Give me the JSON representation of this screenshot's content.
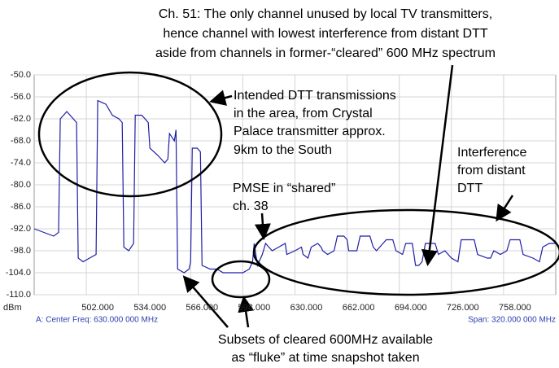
{
  "chart_data": {
    "type": "line",
    "title_lines": [
      "Ch. 51: The only channel unused by local TV transmitters,",
      "hence channel with lowest interference from distant DTT",
      "aside from channels in former-“cleared” 600 MHz spectrum"
    ],
    "annotations": {
      "intended": [
        "Intended DTT transmissions",
        "in the area, from Crystal",
        "Palace transmitter approx.",
        "9km to the South"
      ],
      "interference": [
        "Interference",
        "from distant",
        "DTT"
      ],
      "pmse": [
        "PMSE in “shared”",
        "ch. 38"
      ],
      "subsets": [
        "Subsets of cleared 600MHz available",
        "as “fluke” at time snapshot taken"
      ]
    },
    "y_unit": "dBm",
    "center_freq": "A: Center Freq: 630.000 000 MHz",
    "span": "Span: 320.000 000 MHz",
    "color": "#1f1fa6",
    "grid": true,
    "xlim": [
      470,
      790
    ],
    "ylim": [
      -110,
      -50
    ],
    "xticks": [
      {
        "value": 502,
        "label": "502.000"
      },
      {
        "value": 534,
        "label": "534.000"
      },
      {
        "value": 566,
        "label": "566.000"
      },
      {
        "value": 598,
        "label": "598.000"
      },
      {
        "value": 630,
        "label": "630.000"
      },
      {
        "value": 662,
        "label": "662.000"
      },
      {
        "value": 694,
        "label": "694.000"
      },
      {
        "value": 726,
        "label": "726.000"
      },
      {
        "value": 758,
        "label": "758.000"
      }
    ],
    "yticks": [
      {
        "value": -50,
        "label": "-50.0"
      },
      {
        "value": -56,
        "label": "-56.0"
      },
      {
        "value": -62,
        "label": "-62.0"
      },
      {
        "value": -68,
        "label": "-68.0"
      },
      {
        "value": -74,
        "label": "-74.0"
      },
      {
        "value": -80,
        "label": "-80.0"
      },
      {
        "value": -86,
        "label": "-86.0"
      },
      {
        "value": -92,
        "label": "-92.0"
      },
      {
        "value": -98,
        "label": "-98.0"
      },
      {
        "value": -104,
        "label": "-104.0"
      },
      {
        "value": -110,
        "label": "-110.0"
      }
    ],
    "x": [
      470,
      476,
      482,
      485,
      486,
      490,
      494,
      496,
      497,
      500,
      504,
      508,
      509,
      514,
      518,
      522,
      524,
      525,
      528,
      531,
      532,
      536,
      540,
      541,
      546,
      550,
      552,
      553,
      556,
      557,
      558,
      562,
      565,
      566,
      567,
      570,
      572,
      573,
      578,
      582,
      586,
      590,
      594,
      598,
      602,
      604,
      605,
      607,
      610,
      612,
      614,
      616,
      620,
      624,
      625,
      630,
      634,
      635,
      638,
      640,
      644,
      646,
      647,
      650,
      654,
      656,
      660,
      662,
      663,
      668,
      670,
      676,
      678,
      680,
      684,
      686,
      690,
      692,
      696,
      698,
      702,
      704,
      706,
      708,
      710,
      716,
      718,
      722,
      726,
      730,
      732,
      740,
      742,
      748,
      750,
      752,
      756,
      760,
      762,
      768,
      770,
      776,
      780,
      782,
      786,
      790
    ],
    "values": [
      -92,
      -93,
      -94,
      -93,
      -62,
      -60,
      -62,
      -63,
      -100,
      -101,
      -100,
      -99,
      -57,
      -58,
      -61,
      -62,
      -63,
      -97,
      -98,
      -96,
      -61,
      -61,
      -63,
      -70,
      -72,
      -74,
      -73,
      -66,
      -68,
      -65,
      -103,
      -104,
      -103,
      -101,
      -70,
      -70,
      -71,
      -102,
      -103,
      -103,
      -104,
      -104,
      -104,
      -104,
      -103,
      -101,
      -96,
      -102,
      -99,
      -96,
      -97,
      -98,
      -97,
      -96,
      -99,
      -98,
      -97,
      -99,
      -100,
      -97,
      -96,
      -97,
      -98,
      -99,
      -98,
      -94,
      -94,
      -95,
      -98,
      -98,
      -94,
      -94,
      -97,
      -98,
      -96,
      -95,
      -95,
      -98,
      -99,
      -96,
      -96,
      -102,
      -102,
      -101,
      -96,
      -96,
      -99,
      -98,
      -100,
      -101,
      -95,
      -95,
      -99,
      -100,
      -100,
      -98,
      -99,
      -98,
      -95,
      -95,
      -99,
      -100,
      -101,
      -97,
      -96,
      -96
    ]
  }
}
